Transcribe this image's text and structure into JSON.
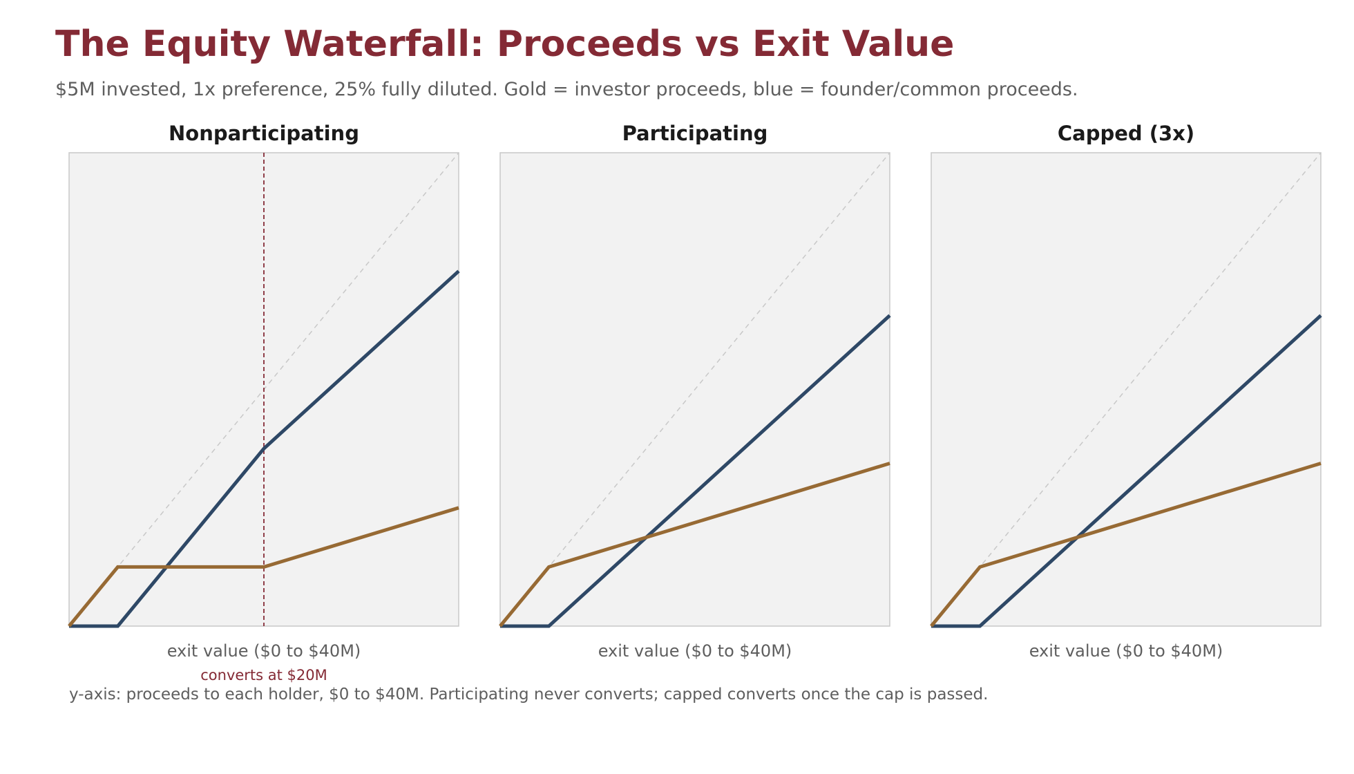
{
  "title": "The Equity Waterfall: Proceeds vs Exit Value",
  "subtitle": "$5M invested, 1x preference, 25% fully diluted. Gold = investor proceeds, blue = founder/common proceeds.",
  "footnote": "y-axis: proceeds to each holder, $0 to $40M. Participating never converts; capped converts once the cap is passed.",
  "colors": {
    "investor": "#976a34",
    "founder": "#2e4866",
    "conversion": "#842a35",
    "diagonal": "#c8c8c8",
    "panel_bg": "#f2f2f2",
    "panel_border": "#c8c8c8"
  },
  "chart_data": [
    {
      "type": "line",
      "title": "Nonparticipating",
      "xlabel": "exit value ($0 to $40M)",
      "xlim": [
        0,
        40
      ],
      "ylim": [
        0,
        40
      ],
      "grid": false,
      "reference_line": "y = x",
      "series": [
        {
          "role": "investor",
          "x": [
            0,
            5,
            20,
            40
          ],
          "y": [
            0,
            5,
            5,
            10
          ]
        },
        {
          "role": "founder",
          "x": [
            0,
            5,
            20,
            40
          ],
          "y": [
            0,
            0,
            15,
            30
          ]
        }
      ],
      "annotation": {
        "x": 20,
        "label": "converts at $20M"
      }
    },
    {
      "type": "line",
      "title": "Participating",
      "xlabel": "exit value ($0 to $40M)",
      "xlim": [
        0,
        40
      ],
      "ylim": [
        0,
        40
      ],
      "grid": false,
      "reference_line": "y = x",
      "series": [
        {
          "role": "investor",
          "x": [
            0,
            5,
            40
          ],
          "y": [
            0,
            5,
            13.75
          ]
        },
        {
          "role": "founder",
          "x": [
            0,
            5,
            40
          ],
          "y": [
            0,
            0,
            26.25
          ]
        }
      ]
    },
    {
      "type": "line",
      "title": "Capped (3x)",
      "xlabel": "exit value ($0 to $40M)",
      "xlim": [
        0,
        40
      ],
      "ylim": [
        0,
        40
      ],
      "grid": false,
      "reference_line": "y = x",
      "series": [
        {
          "role": "investor",
          "x": [
            0,
            5,
            40
          ],
          "y": [
            0,
            5,
            13.75
          ]
        },
        {
          "role": "founder",
          "x": [
            0,
            5,
            40
          ],
          "y": [
            0,
            0,
            26.25
          ]
        }
      ]
    }
  ]
}
